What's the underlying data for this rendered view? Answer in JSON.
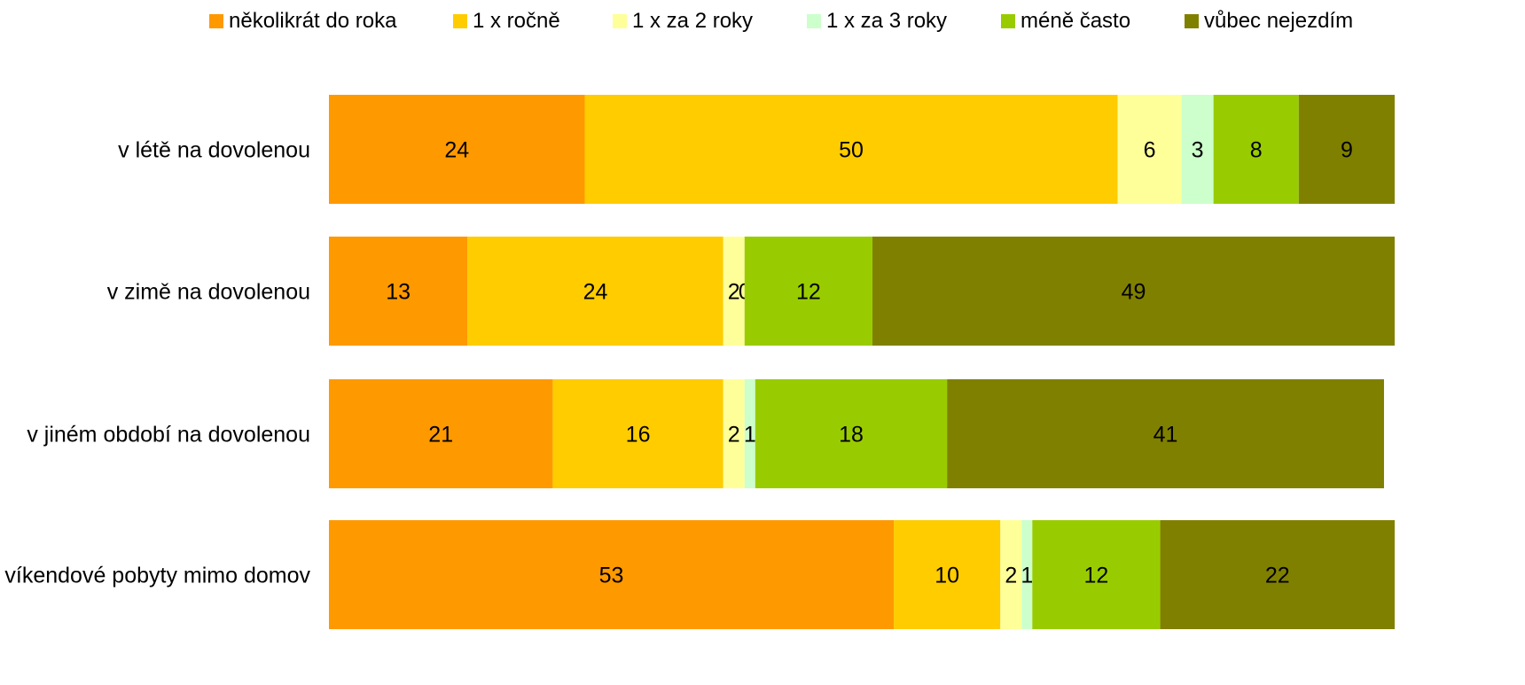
{
  "chart_data": {
    "type": "bar",
    "orientation": "horizontal",
    "stacked": true,
    "categories": [
      "v létě na dovolenou",
      "v zimě na dovolenou",
      "v jiném období na dovolenou",
      "víkendové pobyty mimo domov"
    ],
    "series": [
      {
        "name": "několikrát do roka",
        "color": "#FF9900",
        "values": [
          24,
          13,
          21,
          53
        ]
      },
      {
        "name": "1 x ročně",
        "color": "#FFCC00",
        "values": [
          50,
          24,
          16,
          10
        ]
      },
      {
        "name": "1 x za 2 roky",
        "color": "#FFFF99",
        "values": [
          6,
          2,
          2,
          2
        ]
      },
      {
        "name": "1 x za 3 roky",
        "color": "#CCFFCC",
        "values": [
          3,
          0,
          1,
          1
        ]
      },
      {
        "name": "méně často",
        "color": "#99CC00",
        "values": [
          8,
          12,
          18,
          12
        ]
      },
      {
        "name": "vůbec nejezdím",
        "color": "#808000",
        "values": [
          9,
          49,
          41,
          22
        ]
      }
    ],
    "title": "",
    "xlabel": "",
    "ylabel": "",
    "xlim": [
      0,
      100
    ],
    "grid": false,
    "legend_position": "top"
  }
}
